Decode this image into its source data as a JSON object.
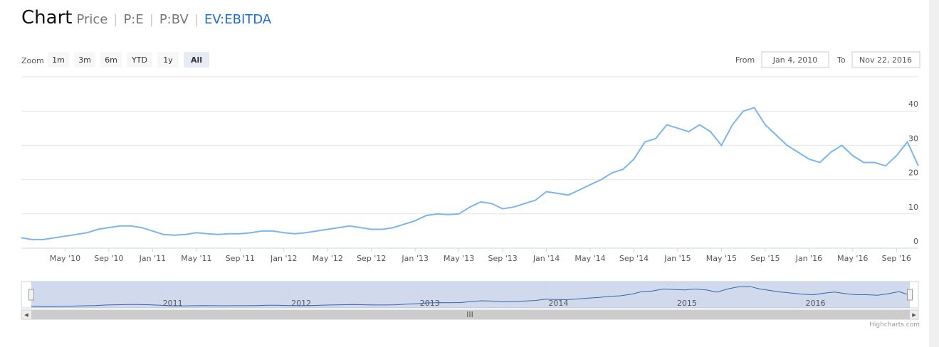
{
  "header": {
    "title": "Chart",
    "tabs": [
      "Price",
      "P:E",
      "P:BV",
      "EV:EBITDA"
    ]
  },
  "range_selector": {
    "zoom_label": "Zoom",
    "buttons": [
      "1m",
      "3m",
      "6m",
      "YTD",
      "1y",
      "All"
    ],
    "active": "All",
    "from_label": "From",
    "from": "Jan 4, 2010",
    "to_label": "To",
    "to": "Nov 22, 2016"
  },
  "credit": "Highcharts.com",
  "chart_data": {
    "type": "line",
    "color": "#7cb5ec",
    "grid": true,
    "x": [
      "2010-01",
      "2010-02",
      "2010-03",
      "2010-04",
      "2010-05",
      "2010-06",
      "2010-07",
      "2010-08",
      "2010-09",
      "2010-10",
      "2010-11",
      "2010-12",
      "2011-01",
      "2011-02",
      "2011-03",
      "2011-04",
      "2011-05",
      "2011-06",
      "2011-07",
      "2011-08",
      "2011-09",
      "2011-10",
      "2011-11",
      "2011-12",
      "2012-01",
      "2012-02",
      "2012-03",
      "2012-04",
      "2012-05",
      "2012-06",
      "2012-07",
      "2012-08",
      "2012-09",
      "2012-10",
      "2012-11",
      "2012-12",
      "2013-01",
      "2013-02",
      "2013-03",
      "2013-04",
      "2013-05",
      "2013-06",
      "2013-07",
      "2013-08",
      "2013-09",
      "2013-10",
      "2013-11",
      "2013-12",
      "2014-01",
      "2014-02",
      "2014-03",
      "2014-04",
      "2014-05",
      "2014-06",
      "2014-07",
      "2014-08",
      "2014-09",
      "2014-10",
      "2014-11",
      "2014-12",
      "2015-01",
      "2015-02",
      "2015-03",
      "2015-04",
      "2015-05",
      "2015-06",
      "2015-07",
      "2015-08",
      "2015-09",
      "2015-10",
      "2015-11",
      "2015-12",
      "2016-01",
      "2016-02",
      "2016-03",
      "2016-04",
      "2016-05",
      "2016-06",
      "2016-07",
      "2016-08",
      "2016-09",
      "2016-10",
      "2016-11"
    ],
    "values": [
      3,
      2.5,
      2.5,
      3,
      3.5,
      4,
      4.5,
      5.5,
      6,
      6.5,
      6.5,
      6,
      5,
      4,
      3.8,
      4,
      4.5,
      4.2,
      4,
      4.2,
      4.2,
      4.5,
      5,
      5,
      4.5,
      4.2,
      4.5,
      5,
      5.5,
      6,
      6.5,
      6,
      5.5,
      5.5,
      6,
      7,
      8,
      9.5,
      10,
      9.8,
      10,
      12,
      13.5,
      13,
      11.5,
      12,
      13,
      14,
      16.5,
      16,
      15.5,
      17,
      18.5,
      20,
      22,
      23,
      26,
      31,
      32,
      36,
      35,
      34,
      36,
      34,
      30,
      36,
      40,
      41,
      36,
      33,
      30,
      28,
      26,
      25,
      28,
      30,
      27,
      25,
      25,
      24,
      27,
      31,
      24
    ],
    "xlim": [
      "2010-01",
      "2016-11"
    ],
    "xticks": [
      {
        "value": "2010-05",
        "label": "May '10"
      },
      {
        "value": "2010-09",
        "label": "Sep '10"
      },
      {
        "value": "2011-01",
        "label": "Jan '11"
      },
      {
        "value": "2011-05",
        "label": "May '11"
      },
      {
        "value": "2011-09",
        "label": "Sep '11"
      },
      {
        "value": "2012-01",
        "label": "Jan '12"
      },
      {
        "value": "2012-05",
        "label": "May '12"
      },
      {
        "value": "2012-09",
        "label": "Sep '12"
      },
      {
        "value": "2013-01",
        "label": "Jan '13"
      },
      {
        "value": "2013-05",
        "label": "May '13"
      },
      {
        "value": "2013-09",
        "label": "Sep '13"
      },
      {
        "value": "2014-01",
        "label": "Jan '14"
      },
      {
        "value": "2014-05",
        "label": "May '14"
      },
      {
        "value": "2014-09",
        "label": "Sep '14"
      },
      {
        "value": "2015-01",
        "label": "Jan '15"
      },
      {
        "value": "2015-05",
        "label": "May '15"
      },
      {
        "value": "2015-09",
        "label": "Sep '15"
      },
      {
        "value": "2016-01",
        "label": "Jan '16"
      },
      {
        "value": "2016-05",
        "label": "May '16"
      },
      {
        "value": "2016-09",
        "label": "Sep '16"
      }
    ],
    "ylim": [
      0,
      50
    ],
    "yticks": [
      0,
      10,
      20,
      30,
      40
    ],
    "navigator": {
      "xticks": [
        {
          "value": "2011-01",
          "label": "2011"
        },
        {
          "value": "2012-01",
          "label": "2012"
        },
        {
          "value": "2013-01",
          "label": "2013"
        },
        {
          "value": "2014-01",
          "label": "2014"
        },
        {
          "value": "2015-01",
          "label": "2015"
        },
        {
          "value": "2016-01",
          "label": "2016"
        }
      ]
    }
  }
}
